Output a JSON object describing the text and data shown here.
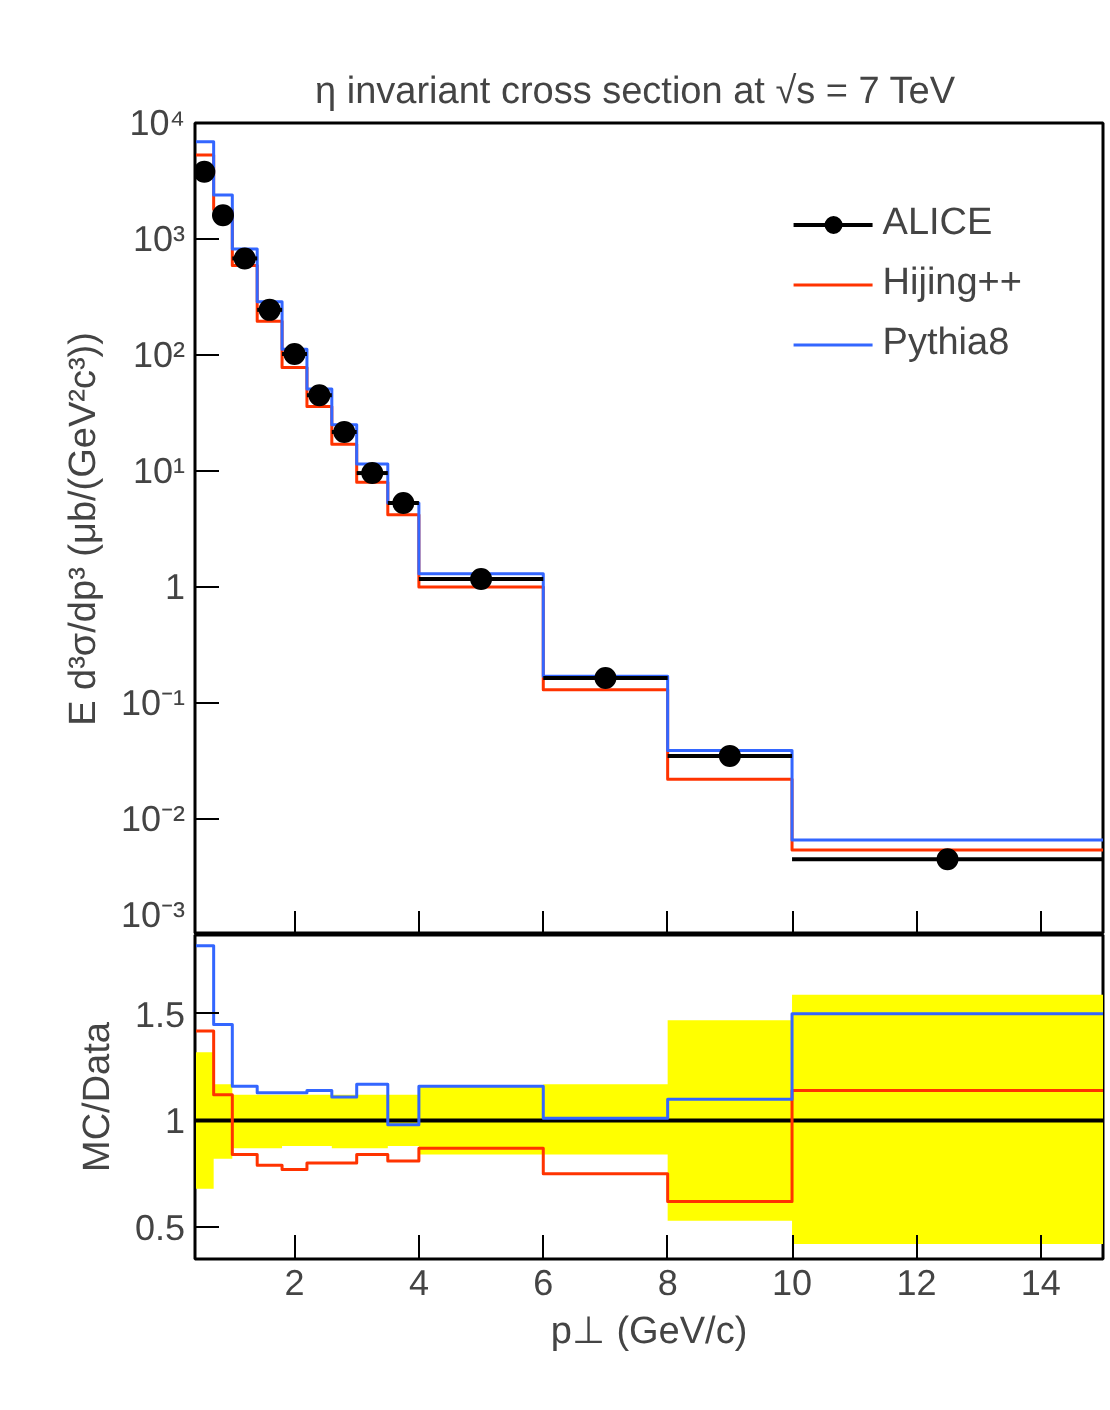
{
  "chart_data": [
    {
      "type": "histogram",
      "title": "η invariant cross section at √s = 7 TeV",
      "ylabel": "E d³σ/dp³ (μb/(GeV²c³))",
      "bins": [
        0.4,
        0.7,
        1.0,
        1.4,
        1.8,
        2.2,
        2.6,
        3.0,
        3.5,
        4.0,
        6.0,
        8.0,
        10.0,
        15.0
      ],
      "xlim": [
        0.4,
        15
      ],
      "xticks": [
        2,
        4,
        6,
        8,
        10,
        12,
        14
      ],
      "tick_labels": "y",
      "log": true,
      "ylim": [
        0.001,
        10000
      ],
      "yticks": [
        {
          "value": 0.001,
          "label": "10⁻³"
        },
        {
          "value": 0.01,
          "label": "10⁻²"
        },
        {
          "value": 0.1,
          "label": "10⁻¹"
        },
        1,
        {
          "value": 10,
          "label": "10¹"
        },
        {
          "value": 100,
          "label": "10²"
        },
        {
          "value": 1000,
          "label": "10³"
        },
        {
          "value": 10000,
          "label": "10⁴"
        }
      ],
      "legend": "top right",
      "series": [
        {
          "name": "ALICE",
          "type": "scatter",
          "marker": "circle",
          "color": "#000000",
          "x": [
            0.55,
            0.85,
            1.2,
            1.6,
            2.0,
            2.4,
            2.8,
            3.25,
            3.75,
            5,
            7,
            9,
            12.5
          ],
          "values": [
            3800,
            1600,
            680,
            245,
            102,
            45,
            21.7,
            9.6,
            5.3,
            1.17,
            0.164,
            0.035,
            0.0045
          ],
          "xerrors": [
            0.15,
            0.15,
            0.2,
            0.2,
            0.2,
            0.2,
            0.2,
            0.25,
            0.25,
            1,
            1,
            1,
            2.5
          ]
        },
        {
          "name": "Hijing++",
          "color": "#ff3300",
          "values": [
            5300,
            1800,
            590,
            195,
            78,
            36,
            17,
            8.0,
            4.2,
            1.0,
            0.13,
            0.022,
            0.0054
          ]
        },
        {
          "name": "Pythia8",
          "color": "#3366ff",
          "values": [
            6900,
            2400,
            820,
            288,
            112,
            51,
            25,
            11.5,
            5.3,
            1.3,
            0.17,
            0.039,
            0.0066
          ]
        }
      ]
    },
    {
      "type": "histogram",
      "xlabel": "p⊥ (GeV/c)",
      "ylabel": "MC/Data",
      "bins": [
        0.4,
        0.7,
        1.0,
        1.4,
        1.8,
        2.2,
        2.6,
        3.0,
        3.5,
        4.0,
        6.0,
        8.0,
        10.0,
        15.0
      ],
      "xlim": [
        0.4,
        15
      ],
      "xticks": [
        2,
        4,
        6,
        8,
        10,
        12,
        14
      ],
      "ylim": [
        0.35,
        1.87
      ],
      "yticks": [
        0.5,
        1,
        1.5
      ],
      "series": [
        {
          "type": "step",
          "color": "#000000",
          "x": [
            0.4,
            0.7,
            1.0,
            1.4,
            1.8,
            2.2,
            2.6,
            3.0,
            3.5,
            4.0,
            6.0,
            8.0,
            10.0,
            15.0
          ],
          "values": [
            1,
            1,
            1,
            1,
            1,
            1,
            1,
            1,
            1,
            1,
            1,
            1,
            1,
            1
          ],
          "lower": [
            0.68,
            0.82,
            0.87,
            0.87,
            0.88,
            0.88,
            0.87,
            0.87,
            0.88,
            0.84,
            0.84,
            0.53,
            0.42,
            0.42
          ],
          "upper": [
            1.32,
            1.17,
            1.12,
            1.12,
            1.12,
            1.12,
            1.12,
            1.12,
            1.12,
            1.16,
            1.17,
            1.47,
            1.59,
            1.59
          ]
        },
        {
          "color": "#ff3300",
          "values": [
            1.42,
            1.12,
            0.84,
            0.79,
            0.77,
            0.8,
            0.8,
            0.84,
            0.81,
            0.87,
            0.75,
            0.62,
            1.14
          ]
        },
        {
          "color": "#3366ff",
          "values": [
            1.82,
            1.45,
            1.16,
            1.13,
            1.13,
            1.14,
            1.11,
            1.17,
            0.98,
            1.16,
            1.01,
            1.1,
            1.5
          ]
        }
      ]
    }
  ]
}
